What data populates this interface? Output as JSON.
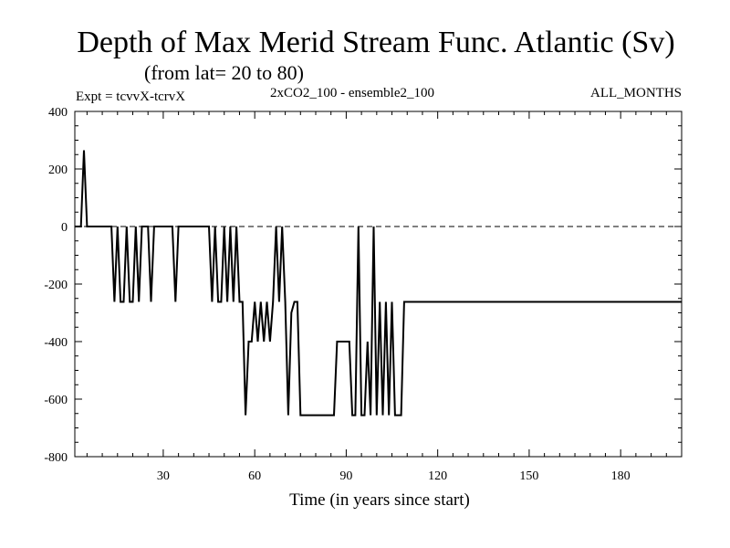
{
  "chart_data": {
    "type": "line",
    "title": "Depth of Max Merid Stream Func. Atlantic (Sv)",
    "subtitle": "(from lat= 20 to 80)",
    "expt_label": "Expt = tcvvX-tcrvX",
    "run_label": "2xCO2_100 - ensemble2_100",
    "period_label": "ALL_MONTHS",
    "xlabel": "Time (in years since start)",
    "ylabel": "",
    "xlim": [
      1,
      200
    ],
    "ylim": [
      -800,
      400
    ],
    "x_ticks": [
      30,
      60,
      90,
      120,
      150,
      180
    ],
    "x_tick_labels": [
      "30",
      "60",
      "90",
      "120",
      "150",
      "180"
    ],
    "y_ticks": [
      400,
      200,
      0,
      -200,
      -400,
      -600,
      -800
    ],
    "y_tick_labels": [
      "400",
      "200",
      "0",
      "-200",
      "-400",
      "-600",
      "-800"
    ],
    "reference_line": {
      "y": 0,
      "style": "dashed"
    },
    "series": [
      {
        "color": "#000000",
        "x": [
          1,
          3,
          4,
          5,
          6,
          13,
          14,
          15,
          16,
          17,
          18,
          19,
          20,
          21,
          22,
          23,
          24,
          25,
          26,
          27,
          28,
          29,
          30,
          31,
          32,
          33,
          34,
          35,
          45,
          46,
          47,
          48,
          49,
          50,
          51,
          52,
          53,
          54,
          55,
          56,
          57,
          58,
          59,
          60,
          61,
          62,
          63,
          64,
          65,
          66,
          67,
          68,
          69,
          70,
          71,
          72,
          73,
          74,
          75,
          76,
          77,
          78,
          86,
          87,
          88,
          91,
          92,
          93,
          94,
          95,
          96,
          97,
          98,
          99,
          100,
          101,
          102,
          103,
          104,
          105,
          106,
          107,
          108,
          109,
          110,
          111,
          200
        ],
        "values": [
          0,
          0,
          265,
          0,
          0,
          0,
          -262,
          0,
          -262,
          -262,
          0,
          -262,
          -262,
          0,
          -262,
          0,
          0,
          0,
          -262,
          0,
          0,
          0,
          0,
          0,
          0,
          0,
          -262,
          0,
          0,
          -262,
          0,
          -262,
          -262,
          0,
          -262,
          0,
          -262,
          0,
          -262,
          -262,
          -656,
          -400,
          -400,
          -262,
          -400,
          -262,
          -400,
          -262,
          -400,
          -262,
          0,
          -262,
          0,
          -262,
          -656,
          -300,
          -262,
          -262,
          -656,
          -656,
          -656,
          -656,
          -656,
          -400,
          -400,
          -400,
          -656,
          -656,
          0,
          -656,
          -656,
          -400,
          -656,
          0,
          -656,
          -262,
          -656,
          -262,
          -656,
          -262,
          -656,
          -656,
          -656,
          -262,
          -262,
          -262,
          -262
        ]
      }
    ]
  }
}
